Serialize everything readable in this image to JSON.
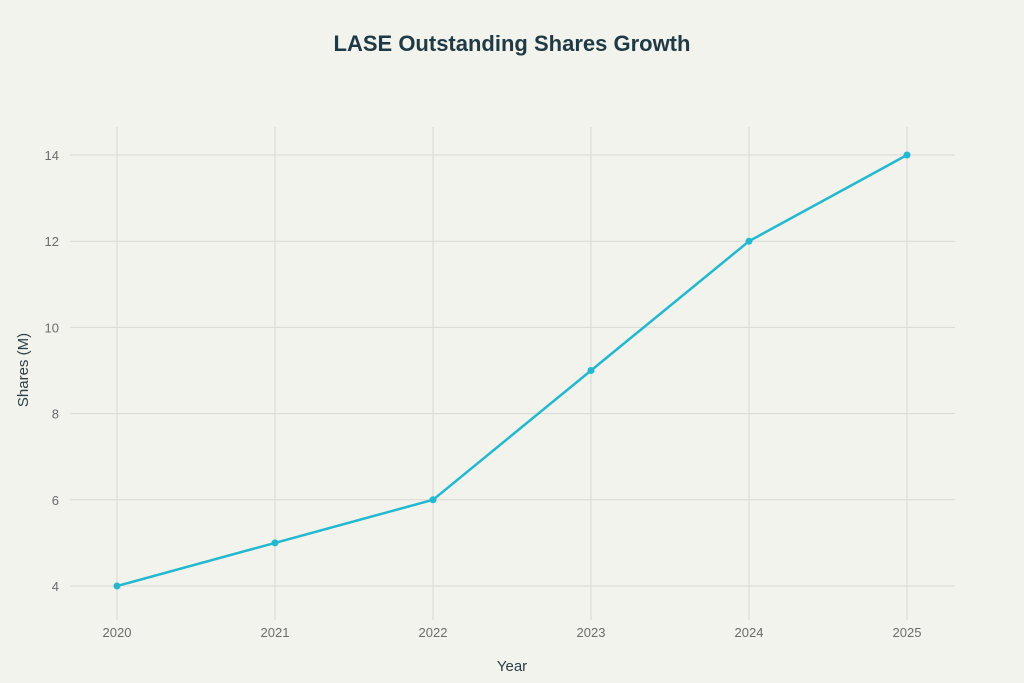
{
  "chart_data": {
    "type": "line",
    "title": "LASE Outstanding Shares Growth",
    "xlabel": "Year",
    "ylabel": "Shares (M)",
    "categories": [
      "2020",
      "2021",
      "2022",
      "2023",
      "2024",
      "2025"
    ],
    "series": [
      {
        "values": [
          4,
          5,
          6,
          9,
          12,
          14
        ],
        "color": "#22b8cf"
      }
    ],
    "yticks": [
      "4",
      "6",
      "8",
      "10",
      "12",
      "14"
    ],
    "ylim": [
      3.4,
      14.7
    ],
    "grid": true,
    "legend": "none",
    "markers": true
  }
}
